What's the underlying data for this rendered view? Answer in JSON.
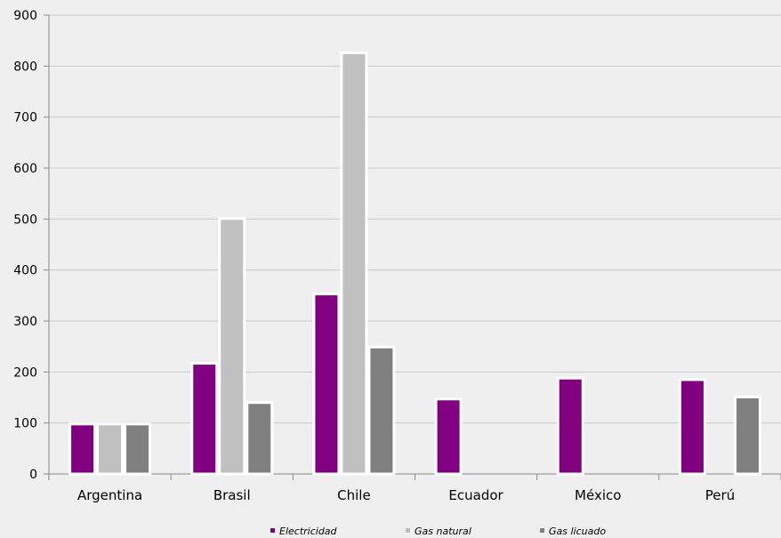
{
  "chart_data": {
    "type": "bar",
    "categories": [
      "Argentina",
      "Brasil",
      "Chile",
      "Ecuador",
      "México",
      "Perú"
    ],
    "series": [
      {
        "name": "Electricidad",
        "color": "#800080",
        "values": [
          98,
          217,
          353,
          147,
          188,
          185
        ]
      },
      {
        "name": "Gas natural",
        "color": "#c0c0c0",
        "values": [
          98,
          501,
          826,
          null,
          null,
          null
        ]
      },
      {
        "name": "Gas licuado",
        "color": "#808080",
        "values": [
          98,
          140,
          249,
          null,
          null,
          151
        ]
      }
    ],
    "ylim": [
      0,
      900
    ],
    "yticks": [
      0,
      100,
      200,
      300,
      400,
      500,
      600,
      700,
      800,
      900
    ],
    "grid": true,
    "legend_position": "bottom",
    "title": "",
    "xlabel": "",
    "ylabel": ""
  }
}
